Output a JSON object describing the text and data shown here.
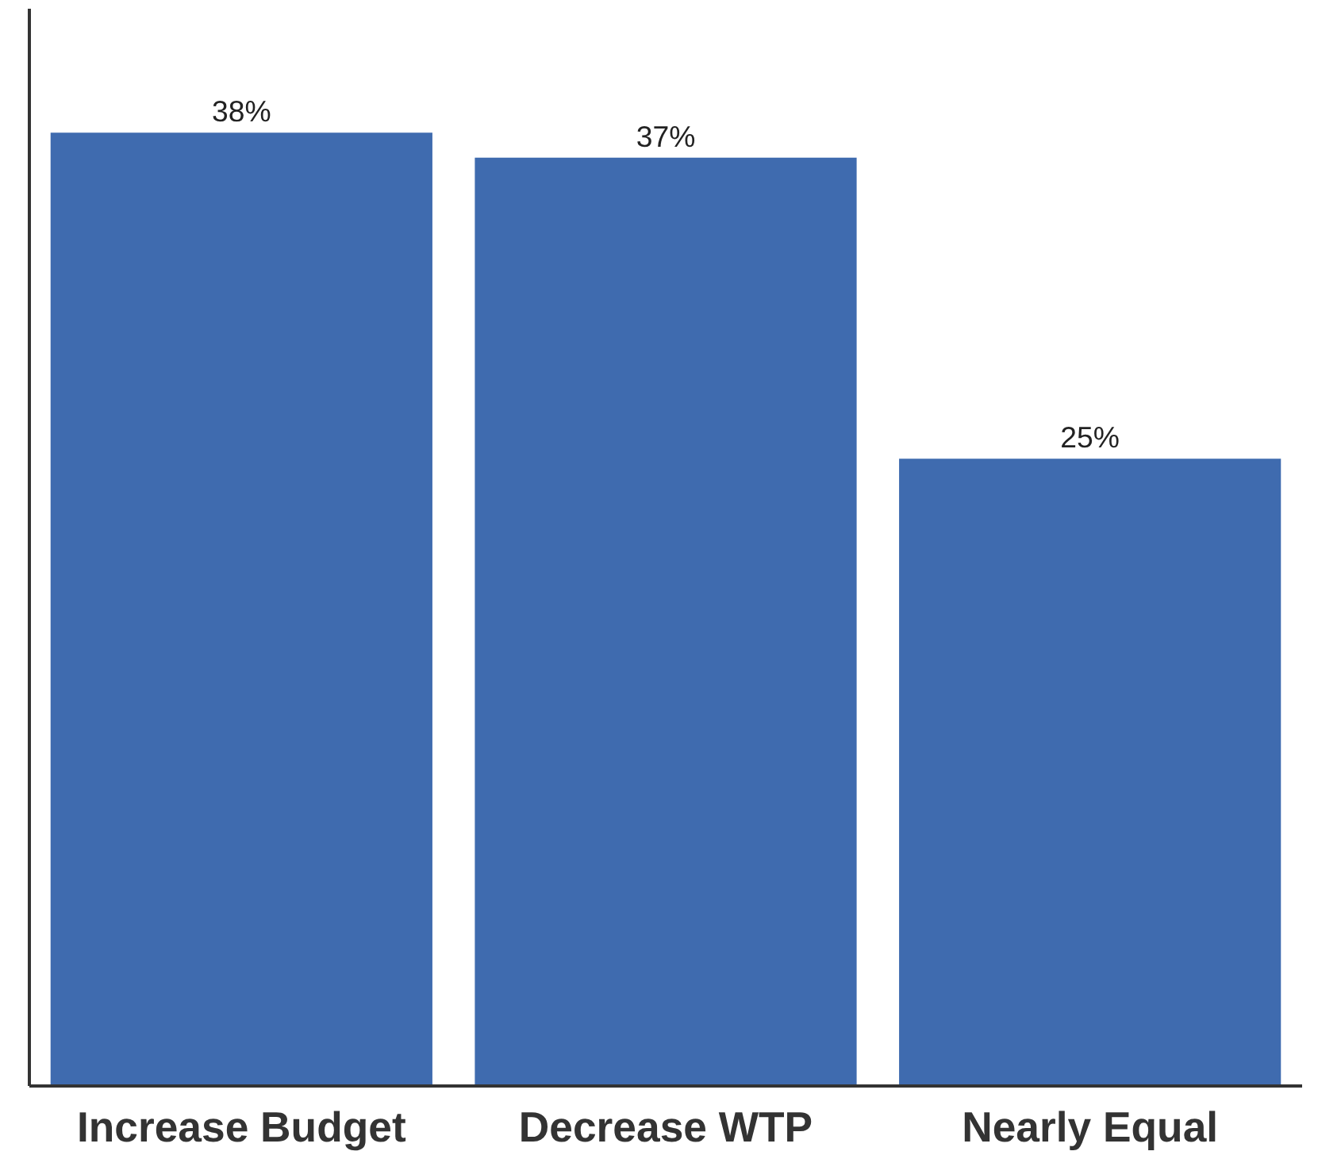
{
  "chart_data": {
    "type": "bar",
    "categories": [
      "Increase Budget",
      "Decrease WTP",
      "Nearly Equal"
    ],
    "values": [
      38,
      37,
      25
    ],
    "value_labels": [
      "38%",
      "37%",
      "25%"
    ],
    "color": "#3f6baf"
  }
}
